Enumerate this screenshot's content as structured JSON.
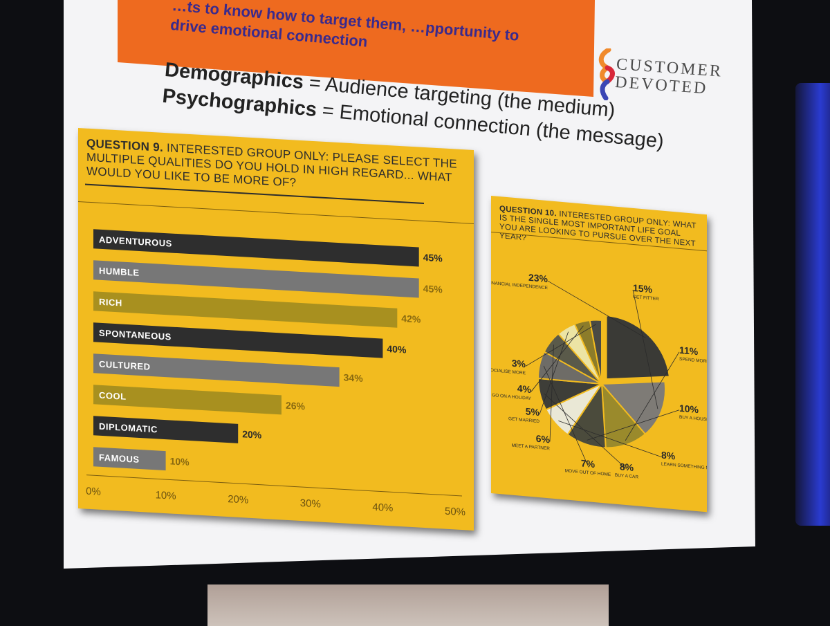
{
  "slide": {
    "banner_text": "…ts to know how to target them, …pportunity to drive emotional connection",
    "brand": {
      "line1": "CUSTOMER",
      "line2": "DEVOTED"
    },
    "heading_line1_bold": "Demographics",
    "heading_line1_rest": " = Audience targeting (the medium)",
    "heading_line2_bold": "Psychographics",
    "heading_line2_rest": " = Emotional connection (the message)"
  },
  "q9": {
    "title_bold": "QUESTION 9.",
    "title_rest": " INTERESTED GROUP ONLY: PLEASE SELECT THE MULTIPLE QUALITIES DO YOU HOLD IN HIGH REGARD... WHAT WOULD YOU LIKE TO BE MORE OF?"
  },
  "q10": {
    "title_bold": "QUESTION 10.",
    "title_rest": " INTERESTED GROUP ONLY: WHAT IS THE SINGLE MOST IMPORTANT LIFE GOAL YOU ARE LOOKING TO PURSUE OVER THE NEXT YEAR?"
  },
  "colors": {
    "panel": "#f2bb1f",
    "dark": "#2e2e2e",
    "grey": "#777777",
    "olive": "#a8901f",
    "banner": "#ee6a1f"
  },
  "chart_data": [
    {
      "type": "bar",
      "orientation": "horizontal",
      "categories": [
        "ADVENTUROUS",
        "HUMBLE",
        "RICH",
        "SPONTANEOUS",
        "CULTURED",
        "COOL",
        "DIPLOMATIC",
        "FAMOUS"
      ],
      "values": [
        45,
        45,
        42,
        40,
        34,
        26,
        20,
        10
      ],
      "value_labels": [
        "45%",
        "45%",
        "42%",
        "40%",
        "34%",
        "26%",
        "20%",
        "10%"
      ],
      "xlim": [
        0,
        50
      ],
      "xticks": [
        "0%",
        "10%",
        "20%",
        "30%",
        "40%",
        "50%"
      ],
      "grid": false
    },
    {
      "type": "pie",
      "slices": [
        {
          "value": 23,
          "label": "23%",
          "name": "ACHIEVE FINANCIAL INDEPENDENCE",
          "color": "#3a3a36"
        },
        {
          "value": 15,
          "label": "15%",
          "name": "GET FITTER",
          "color": "#7e7b76"
        },
        {
          "value": 11,
          "label": "11%",
          "name": "SPEND MORE TIME WITH FAMILY",
          "color": "#9a8a2c"
        },
        {
          "value": 10,
          "label": "10%",
          "name": "BUY A HOUSE",
          "color": "#4b4b3c"
        },
        {
          "value": 8,
          "label": "8%",
          "name": "LEARN SOMETHING NEW",
          "color": "#eae8d6"
        },
        {
          "value": 8,
          "label": "8%",
          "name": "BUY A CAR",
          "color": "#3e3e38"
        },
        {
          "value": 7,
          "label": "7%",
          "name": "MOVE OUT OF HOME",
          "color": "#6e6c67"
        },
        {
          "value": 6,
          "label": "6%",
          "name": "MEET A PARTNER",
          "color": "#5a5a4a"
        },
        {
          "value": 5,
          "label": "5%",
          "name": "GET MARRIED",
          "color": "#ece4a4"
        },
        {
          "value": 4,
          "label": "4%",
          "name": "GO ON A HOLIDAY",
          "color": "#8c7c2a"
        },
        {
          "value": 3,
          "label": "3%",
          "name": "GO OUT AND SOCIALISE MORE",
          "color": "#4a4a44"
        }
      ]
    }
  ]
}
